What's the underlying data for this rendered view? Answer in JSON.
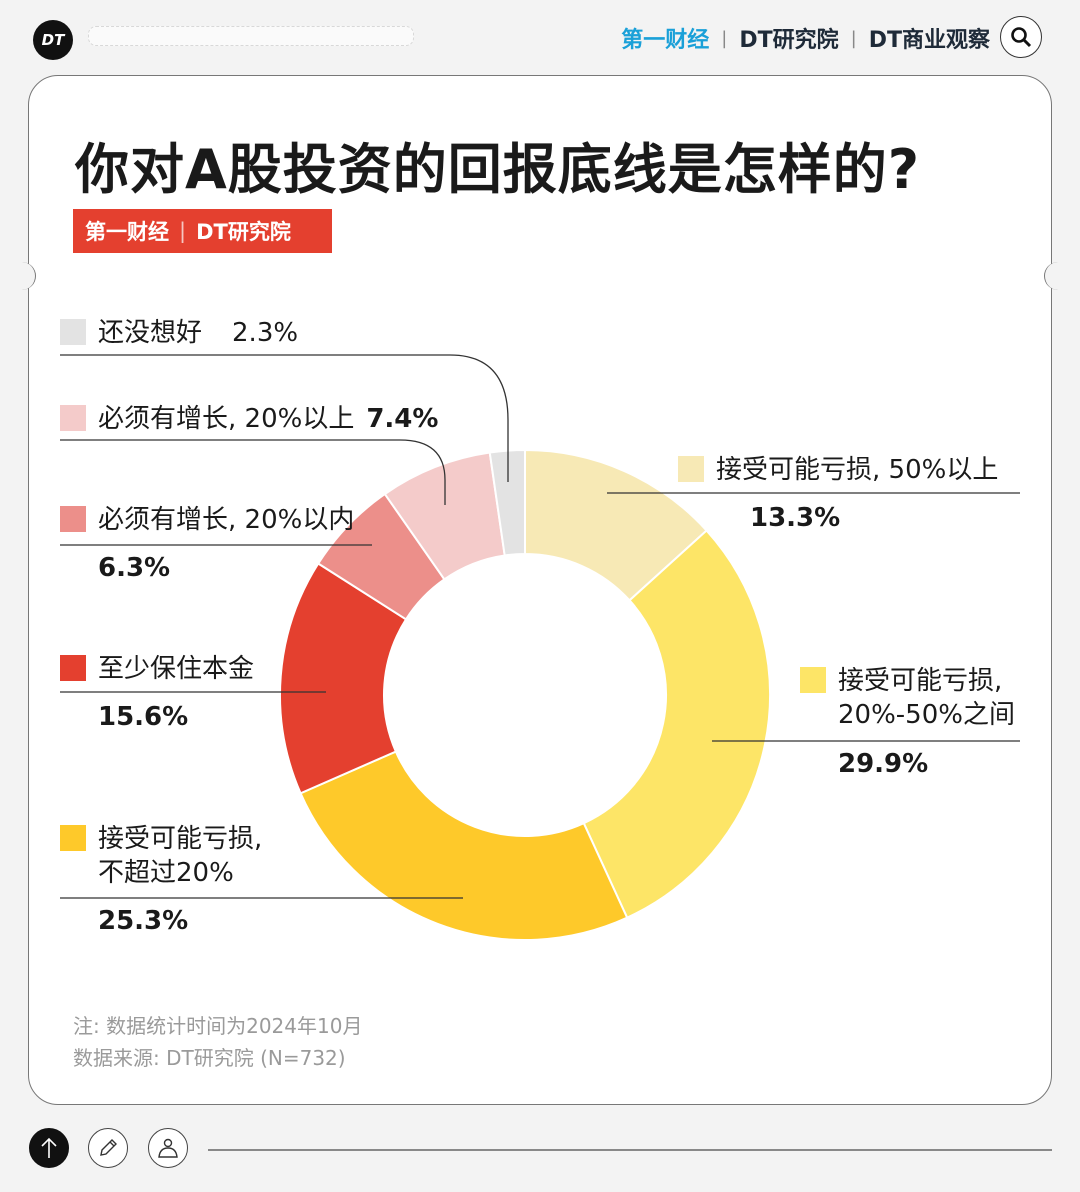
{
  "header": {
    "logo": "DT",
    "brands": [
      "第一财经",
      "DT研究院",
      "DT商业观察"
    ],
    "search_icon": "search-icon"
  },
  "title": "你对A股投资的回报底线是怎样的?",
  "tag": {
    "brand1": "第一财经",
    "brand2": "DT研究院"
  },
  "chart_data": {
    "type": "pie",
    "style": "donut",
    "title": "你对A股投资的回报底线是怎样的?",
    "start": "top",
    "direction": "clockwise",
    "slices": [
      {
        "label": "接受可能亏损, 50%以上",
        "value": 13.3,
        "display": "13.3%",
        "color": "#f7e9b5"
      },
      {
        "label": "接受可能亏损, 20%-50%之间",
        "value": 29.9,
        "display": "29.9%",
        "color": "#fde567"
      },
      {
        "label": "接受可能亏损, 不超过20%",
        "value": 25.3,
        "display": "25.3%",
        "color": "#fec92a"
      },
      {
        "label": "至少保住本金",
        "value": 15.6,
        "display": "15.6%",
        "color": "#e4402f"
      },
      {
        "label": "必须有增长, 20%以内",
        "value": 6.3,
        "display": "6.3%",
        "color": "#ec8f8a"
      },
      {
        "label": "必须有增长, 20%以上",
        "value": 7.4,
        "display": "7.4%",
        "color": "#f4cbca"
      },
      {
        "label": "还没想好",
        "value": 2.3,
        "display": "2.3%",
        "color": "#e3e3e3"
      }
    ]
  },
  "legend_lines": {
    "s1": [
      "接受可能亏损,",
      "20%-50%之间"
    ],
    "s2": [
      "接受可能亏损,",
      "不超过20%"
    ]
  },
  "notes": [
    "注: 数据统计时间为2024年10月",
    "数据来源: DT研究院 (N=732)"
  ],
  "footer": {
    "icons": [
      "arrow-up-icon",
      "pencil-icon",
      "user-icon"
    ]
  }
}
